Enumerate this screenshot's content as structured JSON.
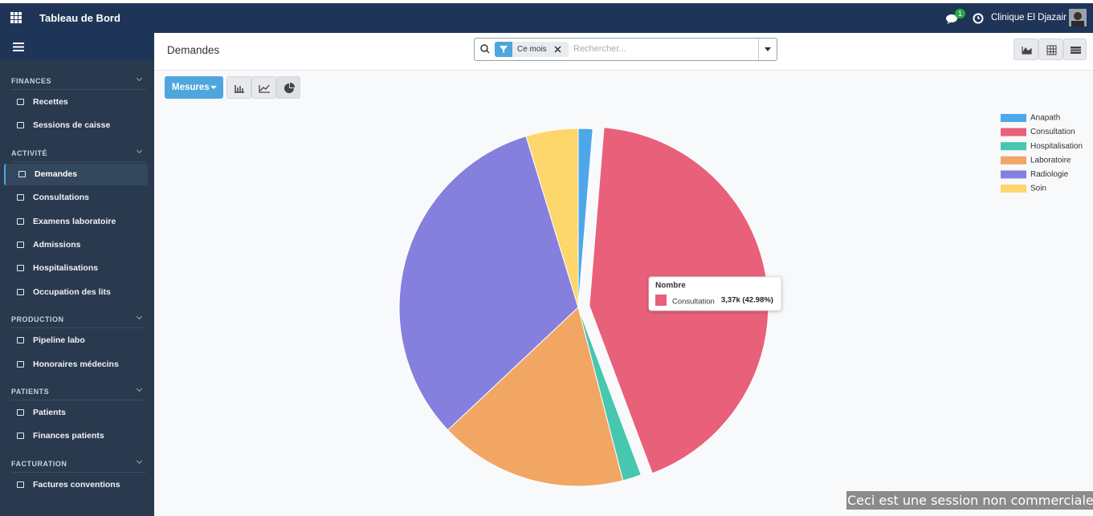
{
  "topbar": {
    "title": "Tableau de Bord",
    "notification_count": "1",
    "company": "Clinique El Djazair"
  },
  "sidebar": {
    "sections": [
      {
        "title": "FINANCES",
        "items": [
          "Recettes",
          "Sessions de caisse"
        ]
      },
      {
        "title": "ACTIVITÉ",
        "items": [
          "Demandes",
          "Consultations",
          "Examens laboratoire",
          "Admissions",
          "Hospitalisations",
          "Occupation des lits"
        ]
      },
      {
        "title": "PRODUCTION",
        "items": [
          "Pipeline labo",
          "Honoraires médecins"
        ]
      },
      {
        "title": "PATIENTS",
        "items": [
          "Patients",
          "Finances patients"
        ]
      },
      {
        "title": "FACTURATION",
        "items": [
          "Factures conventions"
        ]
      }
    ]
  },
  "control_panel": {
    "breadcrumb": "Demandes",
    "facet": "Ce mois",
    "search_placeholder": "Rechercher...",
    "measures_button": "Mesures"
  },
  "chart_data": {
    "type": "pie",
    "measure": "Nombre",
    "categories": [
      "Anapath",
      "Consultation",
      "Hospitalisation",
      "Laboratoire",
      "Radiologie",
      "Soin"
    ],
    "values": [
      102,
      3370,
      133,
      1333,
      2533,
      369
    ],
    "value_labels": [
      null,
      "3,37k (42.98%)",
      null,
      null,
      null,
      null
    ],
    "colors": [
      "#4ea7e8",
      "#e8607a",
      "#47c6b0",
      "#f2a664",
      "#8580de",
      "#fdd66c"
    ],
    "legend": "top-right"
  },
  "watermark": "Ceci est une session non commerciale."
}
